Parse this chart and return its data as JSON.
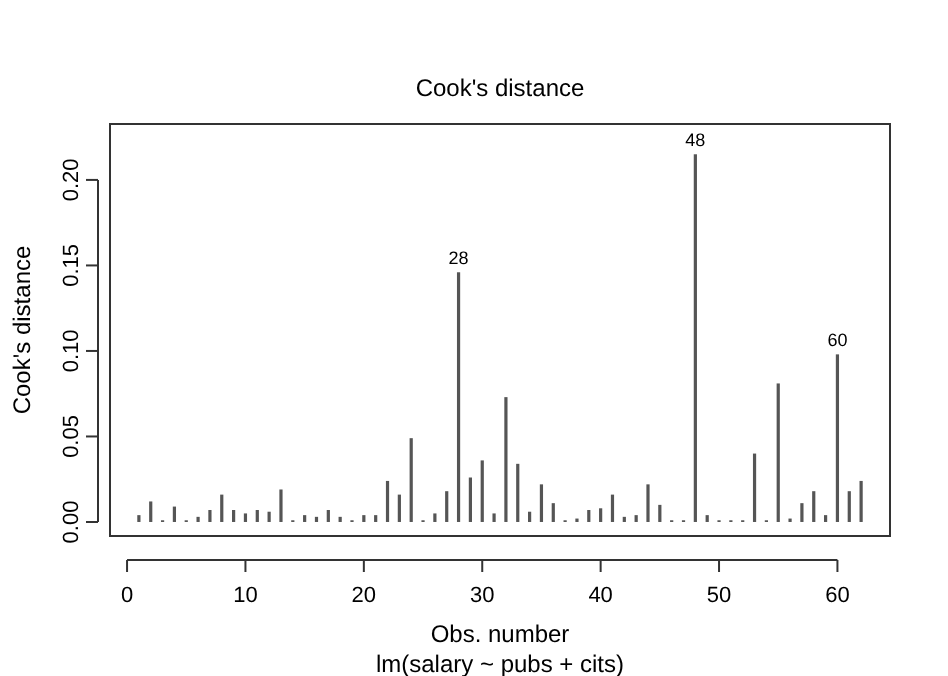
{
  "chart_data": {
    "type": "bar",
    "title": "Cook's distance",
    "xlabel": "Obs. number",
    "ylabel": "Cook's distance",
    "annotations": [
      {
        "text": "28",
        "x": 28,
        "y": 0.146
      },
      {
        "text": "48",
        "x": 48,
        "y": 0.215
      },
      {
        "text": "60",
        "x": 60,
        "y": 0.098
      },
      "lm(salary ~ pubs + cits)"
    ],
    "x": [
      1,
      2,
      3,
      4,
      5,
      6,
      7,
      8,
      9,
      10,
      11,
      12,
      13,
      14,
      15,
      16,
      17,
      18,
      19,
      20,
      21,
      22,
      23,
      24,
      25,
      26,
      27,
      28,
      29,
      30,
      31,
      32,
      33,
      34,
      35,
      36,
      37,
      38,
      39,
      40,
      41,
      42,
      43,
      44,
      45,
      46,
      47,
      48,
      49,
      50,
      51,
      52,
      53,
      54,
      55,
      56,
      57,
      58,
      59,
      60,
      61,
      62
    ],
    "values": [
      0.004,
      0.012,
      0.001,
      0.009,
      0.001,
      0.003,
      0.007,
      0.016,
      0.007,
      0.005,
      0.007,
      0.006,
      0.019,
      0.001,
      0.004,
      0.003,
      0.007,
      0.003,
      0.001,
      0.004,
      0.004,
      0.024,
      0.016,
      0.049,
      0.001,
      0.005,
      0.018,
      0.146,
      0.026,
      0.036,
      0.005,
      0.073,
      0.034,
      0.006,
      0.022,
      0.011,
      0.001,
      0.002,
      0.007,
      0.008,
      0.016,
      0.003,
      0.004,
      0.022,
      0.01,
      0.001,
      0.001,
      0.215,
      0.004,
      0.001,
      0.001,
      0.001,
      0.04,
      0.001,
      0.081,
      0.002,
      0.011,
      0.018,
      0.004,
      0.098,
      0.018,
      0.024
    ],
    "color": "#555555",
    "xlim": [
      -1.44,
      64.44
    ],
    "ylim": [
      -0.0082,
      0.2327
    ],
    "xticks": [
      0,
      10,
      20,
      30,
      40,
      50,
      60
    ],
    "yticks": [
      {
        "value": 0,
        "label": "0.00"
      },
      {
        "value": 0.05,
        "label": "0.05"
      },
      {
        "value": 0.1,
        "label": "0.10"
      },
      {
        "value": 0.15,
        "label": "0.15"
      },
      {
        "value": 0.2,
        "label": "0.20"
      }
    ]
  }
}
